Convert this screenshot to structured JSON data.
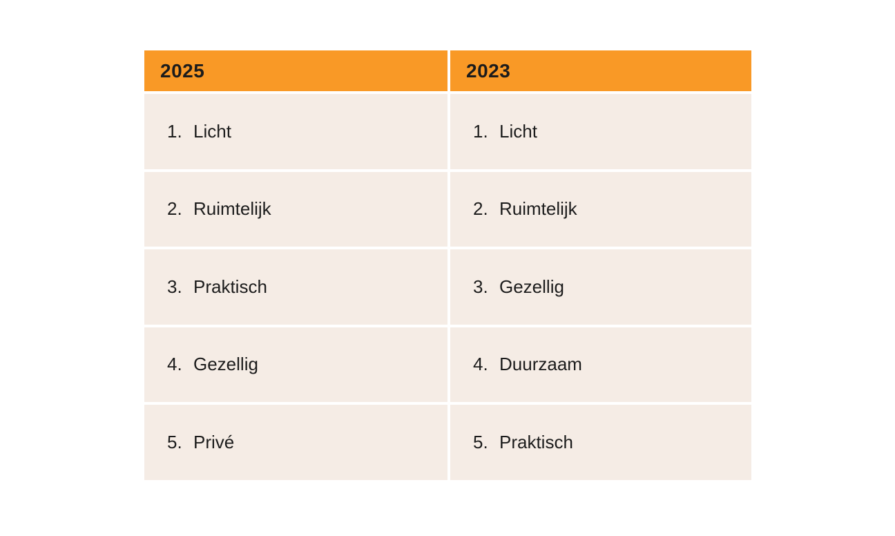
{
  "chart_data": {
    "type": "table",
    "title": "",
    "columns": [
      "2025",
      "2023"
    ],
    "rows": [
      [
        "1. Licht",
        "1. Licht"
      ],
      [
        "2. Ruimtelijk",
        "2. Ruimtelijk"
      ],
      [
        "3. Praktisch",
        "3. Gezellig"
      ],
      [
        "4. Gezellig",
        "4. Duurzaam"
      ],
      [
        "5. Privé",
        "5. Praktisch"
      ]
    ]
  },
  "table": {
    "columns": [
      {
        "header": "2025",
        "items": [
          {
            "num": "1.",
            "label": "Licht"
          },
          {
            "num": "2.",
            "label": "Ruimtelijk"
          },
          {
            "num": "3.",
            "label": "Praktisch"
          },
          {
            "num": "4.",
            "label": "Gezellig"
          },
          {
            "num": "5.",
            "label": "Privé"
          }
        ]
      },
      {
        "header": "2023",
        "items": [
          {
            "num": "1.",
            "label": "Licht"
          },
          {
            "num": "2.",
            "label": "Ruimtelijk"
          },
          {
            "num": "3.",
            "label": "Gezellig"
          },
          {
            "num": "4.",
            "label": "Duurzaam"
          },
          {
            "num": "5.",
            "label": "Praktisch"
          }
        ]
      }
    ]
  },
  "colors": {
    "header_bg": "#F99926",
    "row_bg": "#F5ECE5",
    "text": "#1C1C1C",
    "page_bg": "#FFFFFF"
  }
}
